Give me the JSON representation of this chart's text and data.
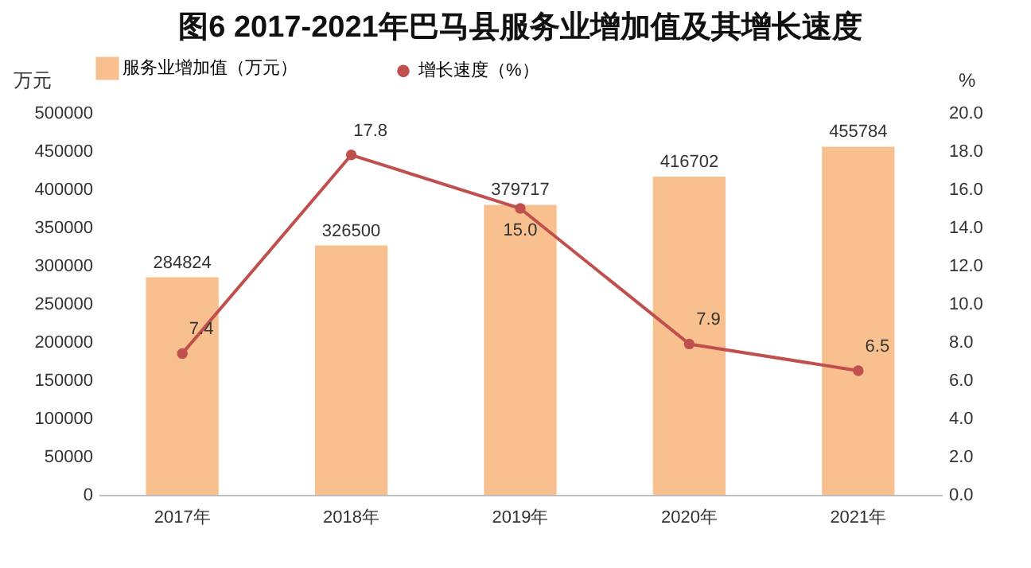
{
  "chart_data": {
    "type": "bar",
    "title": "图6  2017-2021年巴马县服务业增加值及其增长速度",
    "categories": [
      "2017年",
      "2018年",
      "2019年",
      "2020年",
      "2021年"
    ],
    "series": [
      {
        "name": "服务业增加值（万元）",
        "color": "#f9c08f",
        "values": [
          284824,
          326500,
          379717,
          416702,
          455784
        ]
      },
      {
        "name": "增长速度（%）",
        "type": "line",
        "axis": "y2",
        "color": "#c0504d",
        "values": [
          7.4,
          17.8,
          15.0,
          7.9,
          6.5
        ],
        "value_labels": [
          "7.4",
          "17.8",
          "15.0",
          "7.9",
          "6.5"
        ]
      }
    ],
    "ylabel": "万元",
    "y2label": "%",
    "ylim": [
      0,
      500000
    ],
    "yticks": [
      0,
      50000,
      100000,
      150000,
      200000,
      250000,
      300000,
      350000,
      400000,
      450000,
      500000
    ],
    "y2lim": [
      0,
      20
    ],
    "y2ticks": [
      {
        "value": 0,
        "label": "0.0"
      },
      {
        "value": 2,
        "label": "2.0"
      },
      {
        "value": 4,
        "label": "4.0"
      },
      {
        "value": 6,
        "label": "6.0"
      },
      {
        "value": 8,
        "label": "8.0"
      },
      {
        "value": 10,
        "label": "10.0"
      },
      {
        "value": 12,
        "label": "12.0"
      },
      {
        "value": 14,
        "label": "14.0"
      },
      {
        "value": 16,
        "label": "16.0"
      },
      {
        "value": 18,
        "label": "18.0"
      },
      {
        "value": 20,
        "label": "20.0"
      }
    ],
    "data_labels": true,
    "legend": "top",
    "grid": false,
    "marker": "circle"
  }
}
